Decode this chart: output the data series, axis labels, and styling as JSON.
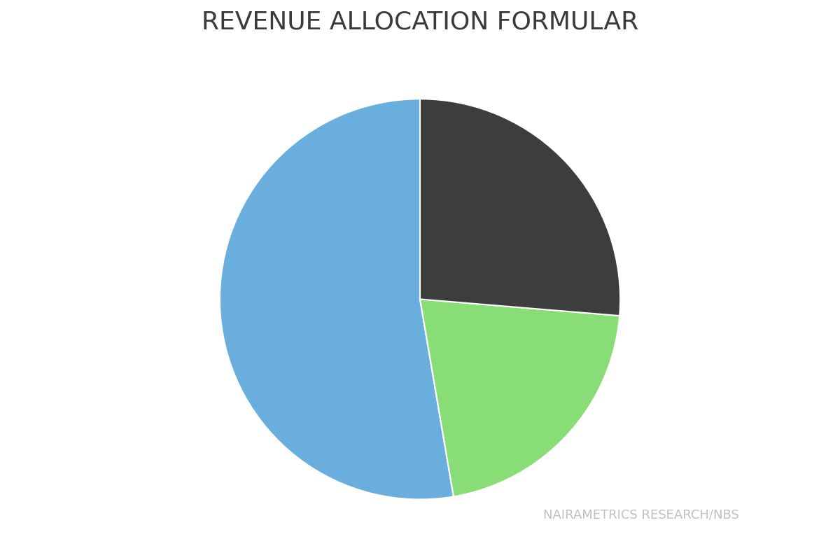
{
  "title": "REVENUE ALLOCATION FORMULAR",
  "title_color": "#3a3a3a",
  "title_fontsize": 26,
  "title_fontweight": "normal",
  "slices": [
    52.68,
    21.0,
    26.32
  ],
  "colors": [
    "#6aaedd",
    "#88dd77",
    "#3d3d3d"
  ],
  "startangle": 90,
  "background_color": "#ffffff",
  "watermark": "NAIRAMETRICS RESEARCH/NBS",
  "watermark_color": "#c0c0c0",
  "watermark_fontsize": 13
}
